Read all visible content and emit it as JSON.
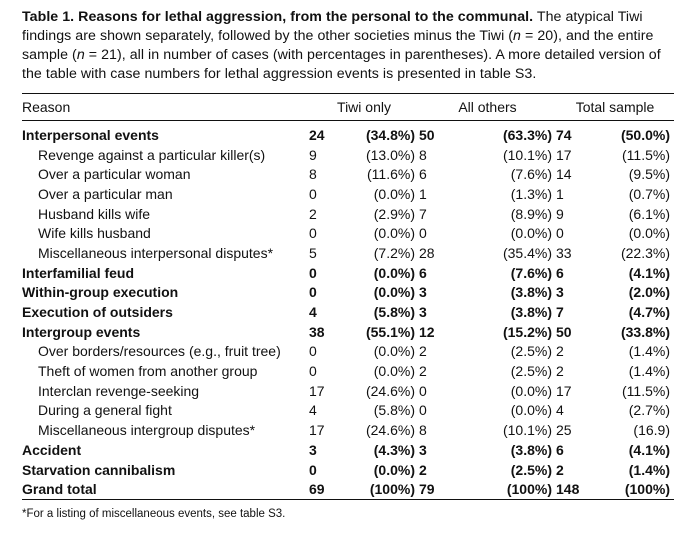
{
  "caption": {
    "title": "Table 1. Reasons for lethal aggression, from the personal to the communal.",
    "text_1": "The atypical Tiwi findings are shown separately, followed by the other societies minus the Tiwi (",
    "n_symbol_1": "n",
    "text_2": " = 20), and the entire sample (",
    "n_symbol_2": "n",
    "text_3": " = 21), all in number of cases (with percentages in parentheses). A more detailed version of the table with case numbers for lethal aggression events is presented in table S3."
  },
  "table": {
    "headers": {
      "reason": "Reason",
      "tiwi": "Tiwi only",
      "others": "All others",
      "total": "Total sample"
    },
    "rows": [
      {
        "reason": "Interpersonal events",
        "bold": true,
        "sub": false,
        "tiwi_n": "24",
        "tiwi_p": "(34.8%)",
        "others_n": "50",
        "others_p": "(63.3%)",
        "total_n": "74",
        "total_p": "(50.0%)"
      },
      {
        "reason": "Revenge against a particular killer(s)",
        "bold": false,
        "sub": true,
        "tiwi_n": "9",
        "tiwi_p": "(13.0%)",
        "others_n": "8",
        "others_p": "(10.1%)",
        "total_n": "17",
        "total_p": "(11.5%)"
      },
      {
        "reason": "Over a particular woman",
        "bold": false,
        "sub": true,
        "tiwi_n": "8",
        "tiwi_p": "(11.6%)",
        "others_n": "6",
        "others_p": "(7.6%)",
        "total_n": "14",
        "total_p": "(9.5%)"
      },
      {
        "reason": "Over a particular man",
        "bold": false,
        "sub": true,
        "tiwi_n": "0",
        "tiwi_p": "(0.0%)",
        "others_n": "1",
        "others_p": "(1.3%)",
        "total_n": "1",
        "total_p": "(0.7%)"
      },
      {
        "reason": "Husband kills wife",
        "bold": false,
        "sub": true,
        "tiwi_n": "2",
        "tiwi_p": "(2.9%)",
        "others_n": "7",
        "others_p": "(8.9%)",
        "total_n": "9",
        "total_p": "(6.1%)"
      },
      {
        "reason": "Wife kills husband",
        "bold": false,
        "sub": true,
        "tiwi_n": "0",
        "tiwi_p": "(0.0%)",
        "others_n": "0",
        "others_p": "(0.0%)",
        "total_n": "0",
        "total_p": "(0.0%)"
      },
      {
        "reason": "Miscellaneous interpersonal disputes*",
        "bold": false,
        "sub": true,
        "tiwi_n": "5",
        "tiwi_p": "(7.2%)",
        "others_n": "28",
        "others_p": "(35.4%)",
        "total_n": "33",
        "total_p": "(22.3%)"
      },
      {
        "reason": "Interfamilial feud",
        "bold": true,
        "sub": false,
        "tiwi_n": "0",
        "tiwi_p": "(0.0%)",
        "others_n": "6",
        "others_p": "(7.6%)",
        "total_n": "6",
        "total_p": "(4.1%)"
      },
      {
        "reason": "Within-group execution",
        "bold": true,
        "sub": false,
        "tiwi_n": "0",
        "tiwi_p": "(0.0%)",
        "others_n": "3",
        "others_p": "(3.8%)",
        "total_n": "3",
        "total_p": "(2.0%)"
      },
      {
        "reason": "Execution of outsiders",
        "bold": true,
        "sub": false,
        "tiwi_n": "4",
        "tiwi_p": "(5.8%)",
        "others_n": "3",
        "others_p": "(3.8%)",
        "total_n": "7",
        "total_p": "(4.7%)"
      },
      {
        "reason": "Intergroup events",
        "bold": true,
        "sub": false,
        "tiwi_n": "38",
        "tiwi_p": "(55.1%)",
        "others_n": "12",
        "others_p": "(15.2%)",
        "total_n": "50",
        "total_p": "(33.8%)"
      },
      {
        "reason": "Over borders/resources (e.g., fruit tree)",
        "bold": false,
        "sub": true,
        "tiwi_n": "0",
        "tiwi_p": "(0.0%)",
        "others_n": "2",
        "others_p": "(2.5%)",
        "total_n": "2",
        "total_p": "(1.4%)"
      },
      {
        "reason": "Theft of women from another group",
        "bold": false,
        "sub": true,
        "tiwi_n": "0",
        "tiwi_p": "(0.0%)",
        "others_n": "2",
        "others_p": "(2.5%)",
        "total_n": "2",
        "total_p": "(1.4%)"
      },
      {
        "reason": "Interclan revenge-seeking",
        "bold": false,
        "sub": true,
        "tiwi_n": "17",
        "tiwi_p": "(24.6%)",
        "others_n": "0",
        "others_p": "(0.0%)",
        "total_n": "17",
        "total_p": "(11.5%)"
      },
      {
        "reason": "During a general fight",
        "bold": false,
        "sub": true,
        "tiwi_n": "4",
        "tiwi_p": "(5.8%)",
        "others_n": "0",
        "others_p": "(0.0%)",
        "total_n": "4",
        "total_p": "(2.7%)"
      },
      {
        "reason": "Miscellaneous intergroup disputes*",
        "bold": false,
        "sub": true,
        "tiwi_n": "17",
        "tiwi_p": "(24.6%)",
        "others_n": "8",
        "others_p": "(10.1%)",
        "total_n": "25",
        "total_p": "(16.9)"
      },
      {
        "reason": "Accident",
        "bold": true,
        "sub": false,
        "tiwi_n": "3",
        "tiwi_p": "(4.3%)",
        "others_n": "3",
        "others_p": "(3.8%)",
        "total_n": "6",
        "total_p": "(4.1%)"
      },
      {
        "reason": "Starvation cannibalism",
        "bold": true,
        "sub": false,
        "tiwi_n": "0",
        "tiwi_p": "(0.0%)",
        "others_n": "2",
        "others_p": "(2.5%)",
        "total_n": "2",
        "total_p": "(1.4%)"
      },
      {
        "reason": "Grand total",
        "bold": true,
        "sub": false,
        "tiwi_n": "69",
        "tiwi_p": "(100%)",
        "others_n": "79",
        "others_p": "(100%)",
        "total_n": "148",
        "total_p": "(100%)"
      }
    ]
  },
  "footnote": "*For a listing of miscellaneous events, see table S3."
}
